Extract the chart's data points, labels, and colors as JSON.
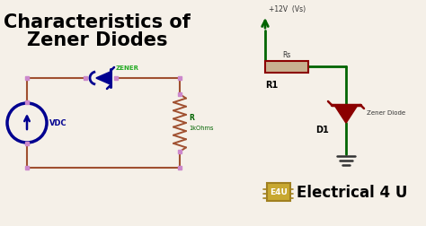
{
  "bg_color": "#f5f0e8",
  "title_line1": "Characteristics of",
  "title_line2": "Zener Diodes",
  "title_color": "#000000",
  "title_fontsize": 15,
  "wire_color_brown": "#a05030",
  "wire_color_blue": "#000090",
  "wire_color_green": "#006400",
  "wire_color_dark_red": "#8b0000",
  "node_color": "#cc88cc",
  "zener_label": "ZENER",
  "zener_label_color": "#22aa22",
  "resistor_label_r": "R",
  "resistor_label_ohms": "1kOhms",
  "resistor_label_color": "#006400",
  "vdc_label": "VDC",
  "vdc_label_color": "#000090",
  "voltage_label": "+12V  (Vs)",
  "rs_label": "Rs",
  "r1_label": "R1",
  "d1_label": "D1",
  "zener_diode_label": "Zener Diode",
  "e4u_label": "Electrical 4 U",
  "chip_color": "#c8a830",
  "chip_border_color": "#a08020",
  "chip_text": "E4U",
  "chip_text_color": "#ffffff",
  "label_color": "#333333"
}
